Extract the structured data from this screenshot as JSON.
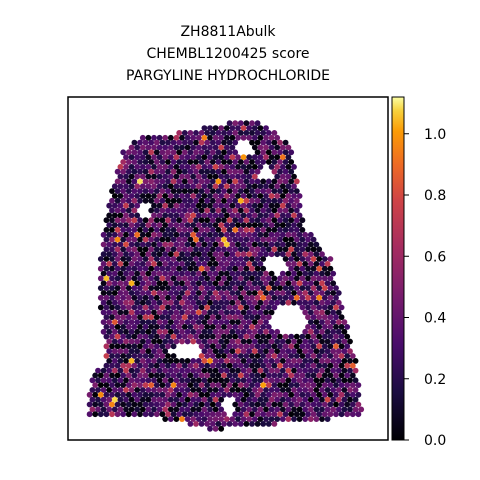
{
  "chart_data": {
    "type": "scatter",
    "title_lines": [
      "ZH8811Abulk",
      "CHEMBL1200425 score",
      "PARGYLINE HYDROCHLORIDE"
    ],
    "colormap": "inferno",
    "colorbar": {
      "min": 0.0,
      "max": 1.12,
      "ticks": [
        0.0,
        0.2,
        0.4,
        0.6,
        0.8,
        1.0
      ],
      "tick_labels": [
        "0.0",
        "0.2",
        "0.4",
        "0.6",
        "0.8",
        "1.0"
      ]
    },
    "grid": false,
    "axes_visible": false,
    "tissue_outline": [
      [
        0.21,
        0.12
      ],
      [
        0.37,
        0.1
      ],
      [
        0.58,
        0.06
      ],
      [
        0.7,
        0.14
      ],
      [
        0.74,
        0.38
      ],
      [
        0.82,
        0.47
      ],
      [
        0.86,
        0.62
      ],
      [
        0.9,
        0.77
      ],
      [
        0.92,
        0.93
      ],
      [
        0.7,
        0.95
      ],
      [
        0.45,
        0.97
      ],
      [
        0.25,
        0.93
      ],
      [
        0.06,
        0.93
      ],
      [
        0.07,
        0.82
      ],
      [
        0.12,
        0.77
      ],
      [
        0.1,
        0.6
      ],
      [
        0.1,
        0.46
      ],
      [
        0.13,
        0.3
      ],
      [
        0.17,
        0.16
      ]
    ],
    "holes": [
      [
        0.37,
        0.74,
        0.05,
        0.02
      ],
      [
        0.69,
        0.65,
        0.055,
        0.045
      ],
      [
        0.65,
        0.49,
        0.035,
        0.025
      ],
      [
        0.55,
        0.15,
        0.03,
        0.025
      ],
      [
        0.62,
        0.22,
        0.025,
        0.02
      ],
      [
        0.24,
        0.33,
        0.02,
        0.025
      ],
      [
        0.5,
        0.9,
        0.02,
        0.03
      ]
    ],
    "spot_value_median": 0.35
  }
}
